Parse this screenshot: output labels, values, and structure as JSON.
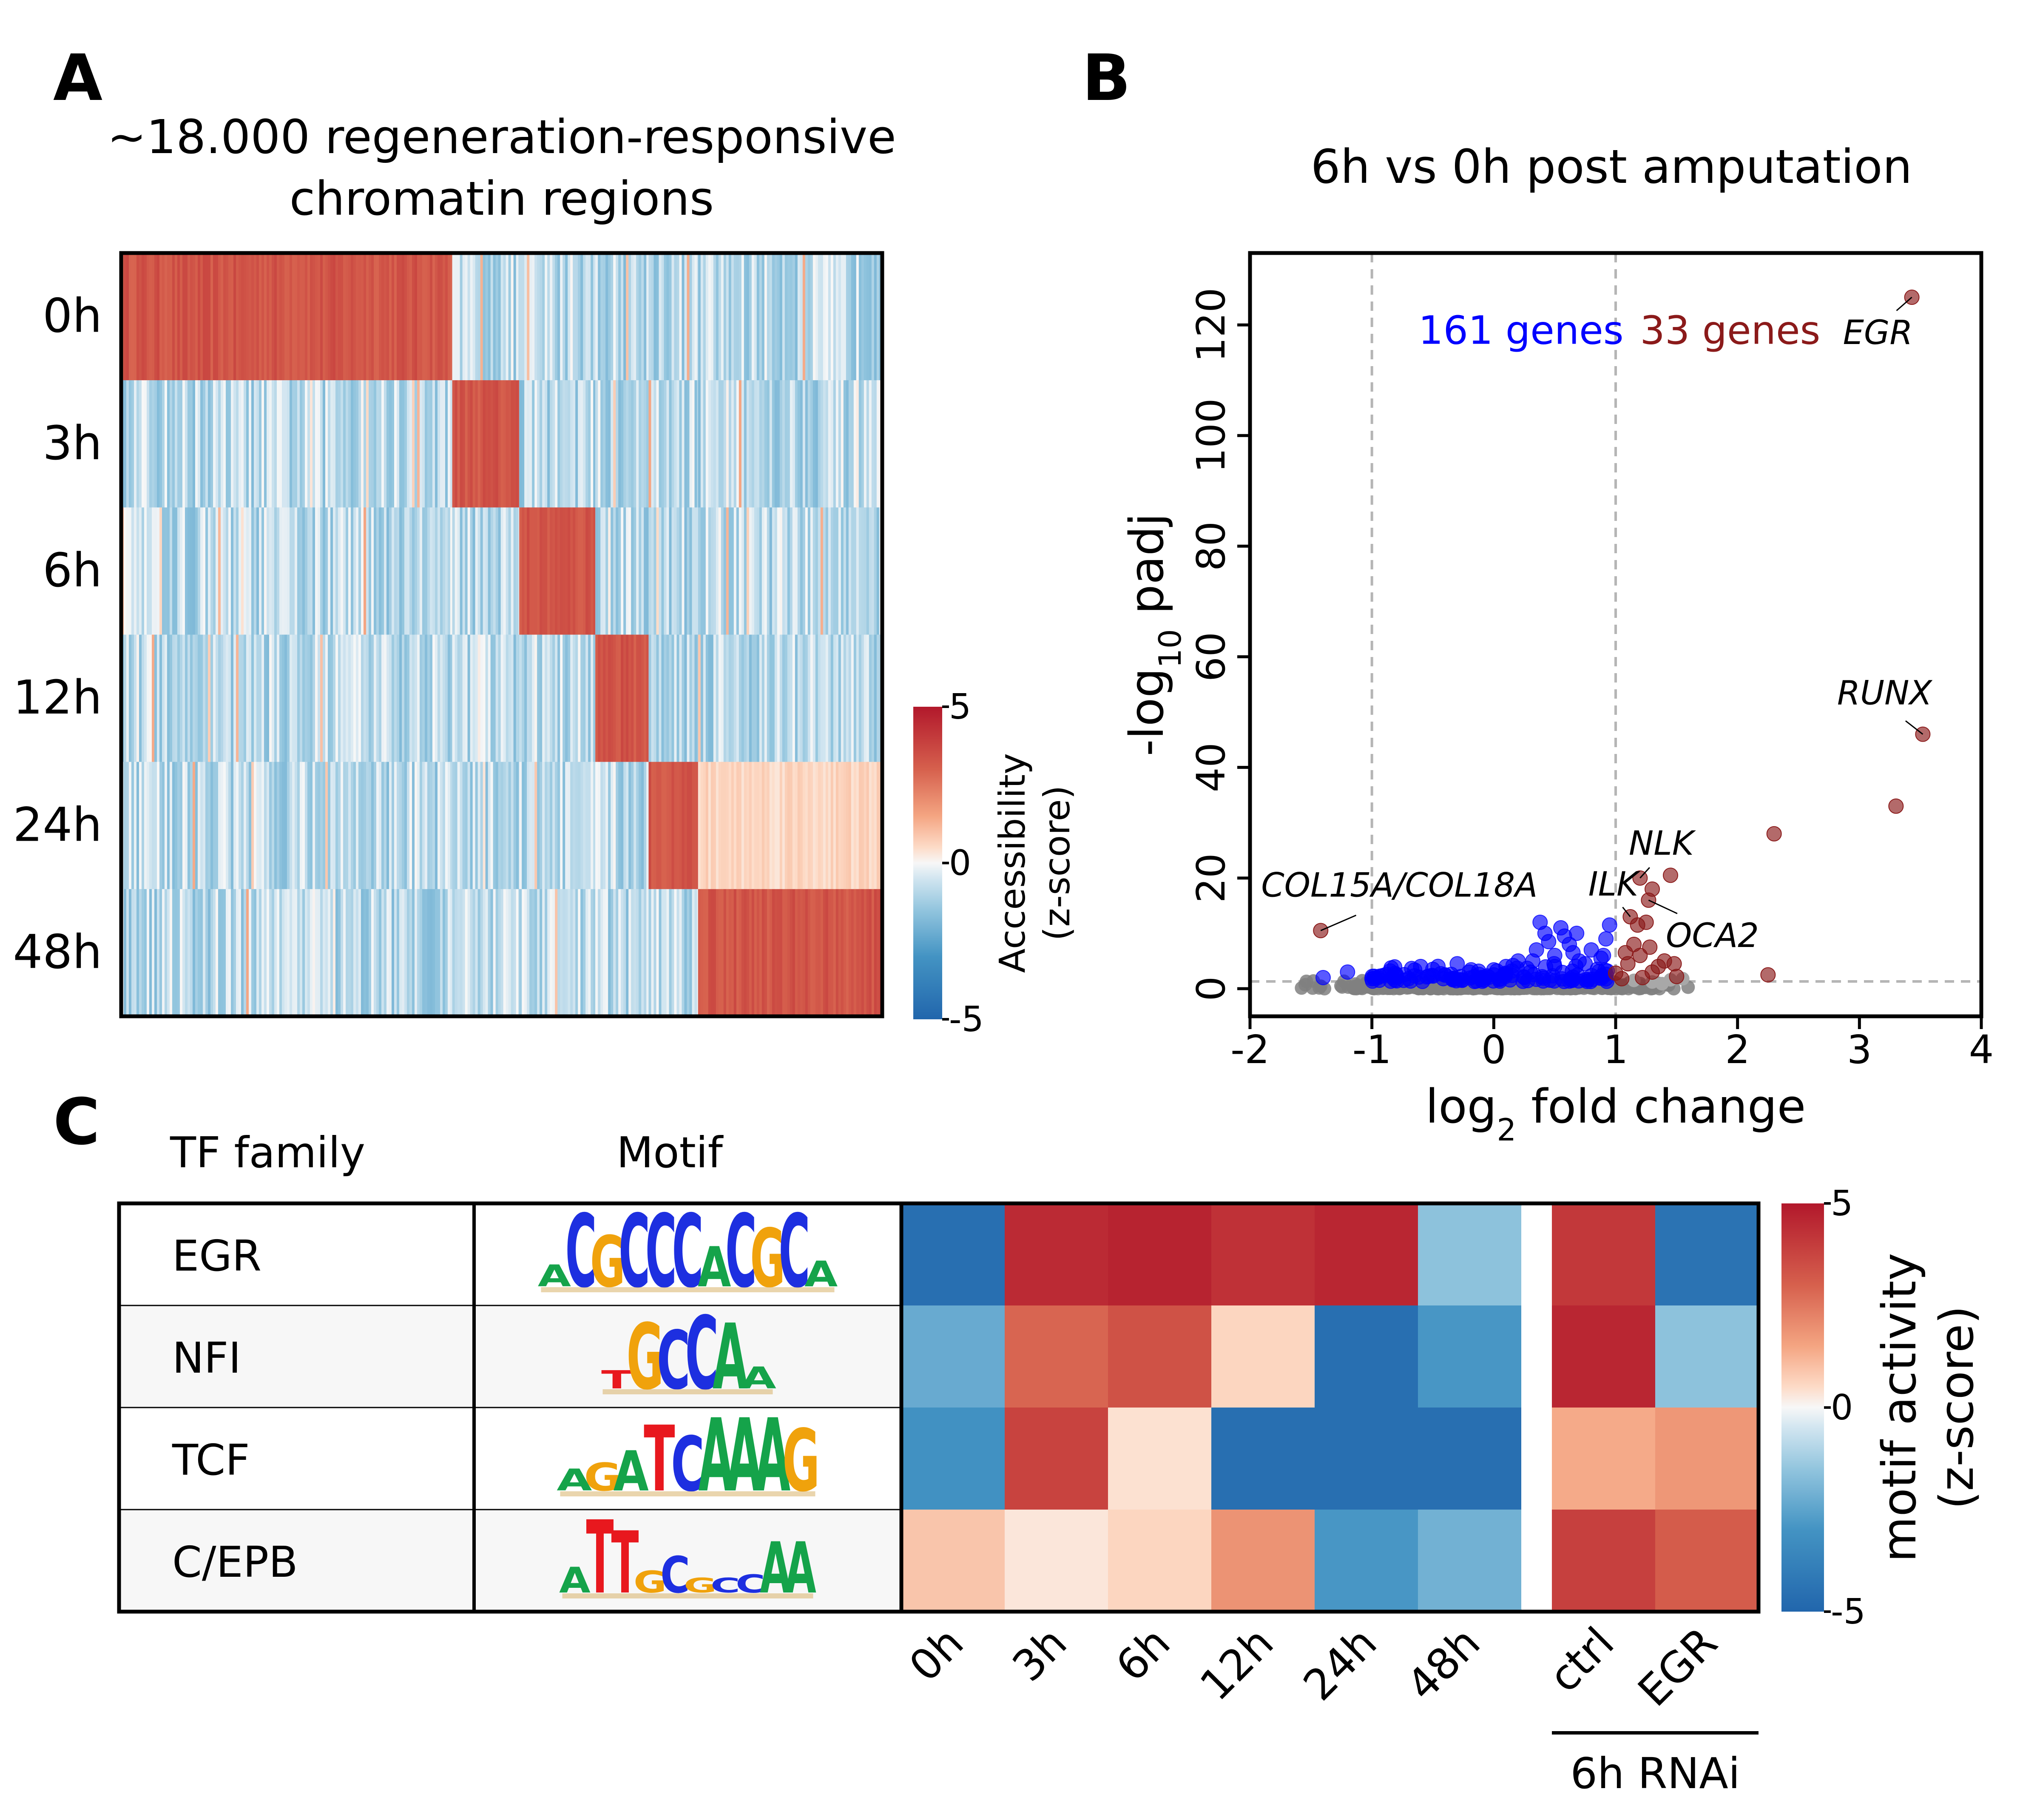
{
  "panels": {
    "a": {
      "letter": "A",
      "title_line1": "~18.000 regeneration-responsive",
      "title_line2": "chromatin regions"
    },
    "b": {
      "letter": "B",
      "title": "6h vs 0h post amputation"
    },
    "c": {
      "letter": "C",
      "header_tf": "TF family",
      "header_motif": "Motif",
      "group_label": "6h RNAi"
    }
  },
  "chart_data": [
    {
      "type": "heatmap",
      "panel": "A",
      "title": "~18.000 regeneration-responsive chromatin regions",
      "rows": [
        "0h",
        "3h",
        "6h",
        "12h",
        "24h",
        "48h"
      ],
      "cluster_fraction": [
        0.435,
        0.088,
        0.1,
        0.07,
        0.065,
        0.242
      ],
      "cluster_peak_row": [
        0,
        1,
        2,
        3,
        4,
        5
      ],
      "colorbar": {
        "label_line1": "Accessibility",
        "label_line2": "(z-score)",
        "ticks": [
          "5",
          "0",
          "-5"
        ],
        "range": [
          -5,
          5
        ]
      },
      "colors": {
        "high": "#d6604d",
        "mid": "#f7f7f7",
        "low": "#4393c3"
      }
    },
    {
      "type": "scatter",
      "panel": "B",
      "title": "6h vs 0h post amputation",
      "xlabel": "log2 fold change",
      "ylabel": "-log10 padj",
      "xlim": [
        -2,
        4
      ],
      "ylim": [
        -5,
        133
      ],
      "xticks": [
        -2,
        -1,
        0,
        1,
        2,
        3,
        4
      ],
      "yticks": [
        0,
        20,
        40,
        60,
        80,
        100,
        120
      ],
      "thresholds": {
        "x": [
          -1,
          1
        ],
        "y": 1.3
      },
      "counts": {
        "down": "161 genes",
        "up": "33 genes"
      },
      "colors": {
        "down": "#0000ff",
        "up": "#8b1a1a",
        "ns": "#808080"
      },
      "labeled_points": [
        {
          "label": "EGR",
          "x": 3.43,
          "y": 125
        },
        {
          "label": "RUNX",
          "x": 3.52,
          "y": 46
        },
        {
          "label": "NLK",
          "x": 1.2,
          "y": 20
        },
        {
          "label": "ILK",
          "x": 1.12,
          "y": 13
        },
        {
          "label": "OCA2",
          "x": 1.27,
          "y": 16
        },
        {
          "label": "COL15A/COL18A",
          "x": -1.42,
          "y": 10.5
        }
      ],
      "up_points": [
        [
          3.3,
          33
        ],
        [
          2.3,
          28
        ],
        [
          1.45,
          20.5
        ],
        [
          1.3,
          18
        ],
        [
          1.18,
          11.5
        ],
        [
          1.25,
          12
        ],
        [
          2.25,
          2.5
        ],
        [
          1.0,
          2.8
        ],
        [
          1.1,
          4.5
        ],
        [
          1.2,
          6
        ],
        [
          1.3,
          3
        ],
        [
          1.4,
          5
        ],
        [
          1.05,
          1.8
        ],
        [
          1.15,
          8
        ],
        [
          1.35,
          4
        ],
        [
          1.22,
          2
        ],
        [
          1.48,
          4.5
        ],
        [
          1.08,
          6.5
        ],
        [
          1.28,
          7.5
        ],
        [
          1.5,
          2.2
        ]
      ],
      "down_points": [
        [
          -1.4,
          2
        ],
        [
          -1.2,
          3
        ],
        [
          -0.95,
          2
        ],
        [
          -0.8,
          2.5
        ],
        [
          -0.6,
          4
        ],
        [
          -0.4,
          2.5
        ],
        [
          -0.2,
          3
        ],
        [
          0.0,
          2.5
        ],
        [
          0.3,
          3
        ],
        [
          0.5,
          4
        ],
        [
          0.7,
          5
        ],
        [
          0.9,
          6
        ],
        [
          0.38,
          12
        ],
        [
          0.42,
          10
        ],
        [
          0.55,
          11
        ],
        [
          0.62,
          8
        ],
        [
          0.8,
          7
        ],
        [
          0.95,
          11.5
        ],
        [
          0.92,
          9
        ],
        [
          0.5,
          6
        ],
        [
          0.2,
          5
        ],
        [
          0.1,
          4
        ],
        [
          -0.5,
          3.5
        ],
        [
          -0.3,
          4.5
        ],
        [
          0.35,
          7
        ],
        [
          0.65,
          6.5
        ],
        [
          0.75,
          4.5
        ],
        [
          0.85,
          3.5
        ],
        [
          0.25,
          2
        ],
        [
          -0.7,
          1.8
        ],
        [
          -0.1,
          2
        ],
        [
          0.45,
          8.5
        ],
        [
          0.58,
          9.5
        ],
        [
          0.68,
          10
        ],
        [
          0.88,
          5.5
        ],
        [
          0.15,
          3.2
        ],
        [
          -0.85,
          3.2
        ],
        [
          -1.0,
          1.8
        ],
        [
          0.05,
          1.8
        ],
        [
          0.32,
          5
        ]
      ]
    },
    {
      "type": "heatmap",
      "panel": "C",
      "rows": [
        "EGR",
        "NFI",
        "TCF",
        "C/EPB"
      ],
      "motifs": [
        {
          "tf": "EGR",
          "sequence": "ACGCCCACGCA",
          "weights": [
            0.3,
            1,
            0.7,
            1,
            1,
            1,
            0.55,
            1,
            0.8,
            1,
            0.35
          ]
        },
        {
          "tf": "NFI",
          "sequence": "TGCCAA",
          "weights": [
            0.25,
            0.9,
            0.8,
            1,
            0.9,
            0.3
          ]
        },
        {
          "tf": "TCF",
          "sequence": "AGATCAAAG",
          "weights": [
            0.3,
            0.38,
            0.55,
            0.9,
            0.75,
            1,
            1,
            1,
            0.85
          ]
        },
        {
          "tf": "C/EPB",
          "sequence": "ATTGCGCCAA",
          "weights": [
            0.35,
            1,
            0.85,
            0.3,
            0.5,
            0.2,
            0.2,
            0.25,
            0.7,
            0.7
          ]
        }
      ],
      "columns": [
        "0h",
        "3h",
        "6h",
        "12h",
        "24h",
        "48h",
        "ctrl",
        "EGR"
      ],
      "group_label": "6h RNAi",
      "group_columns": [
        "ctrl",
        "EGR"
      ],
      "values": [
        [
          -4.6,
          4.5,
          4.7,
          4.3,
          4.6,
          -1.6,
          4.1,
          -4.4
        ],
        [
          -2.3,
          2.9,
          3.4,
          0.6,
          -4.6,
          -2.9,
          4.6,
          -1.6
        ],
        [
          -3.1,
          3.8,
          0.4,
          -4.6,
          -4.6,
          -4.6,
          1.4,
          1.8
        ],
        [
          0.9,
          0.3,
          0.6,
          1.9,
          -2.9,
          -2.1,
          3.9,
          3.1
        ]
      ],
      "colorbar": {
        "label_line1": "motif activity",
        "label_line2": "(z-score)",
        "ticks": [
          "5",
          "0",
          "-5"
        ],
        "range": [
          -5,
          5
        ]
      }
    }
  ]
}
